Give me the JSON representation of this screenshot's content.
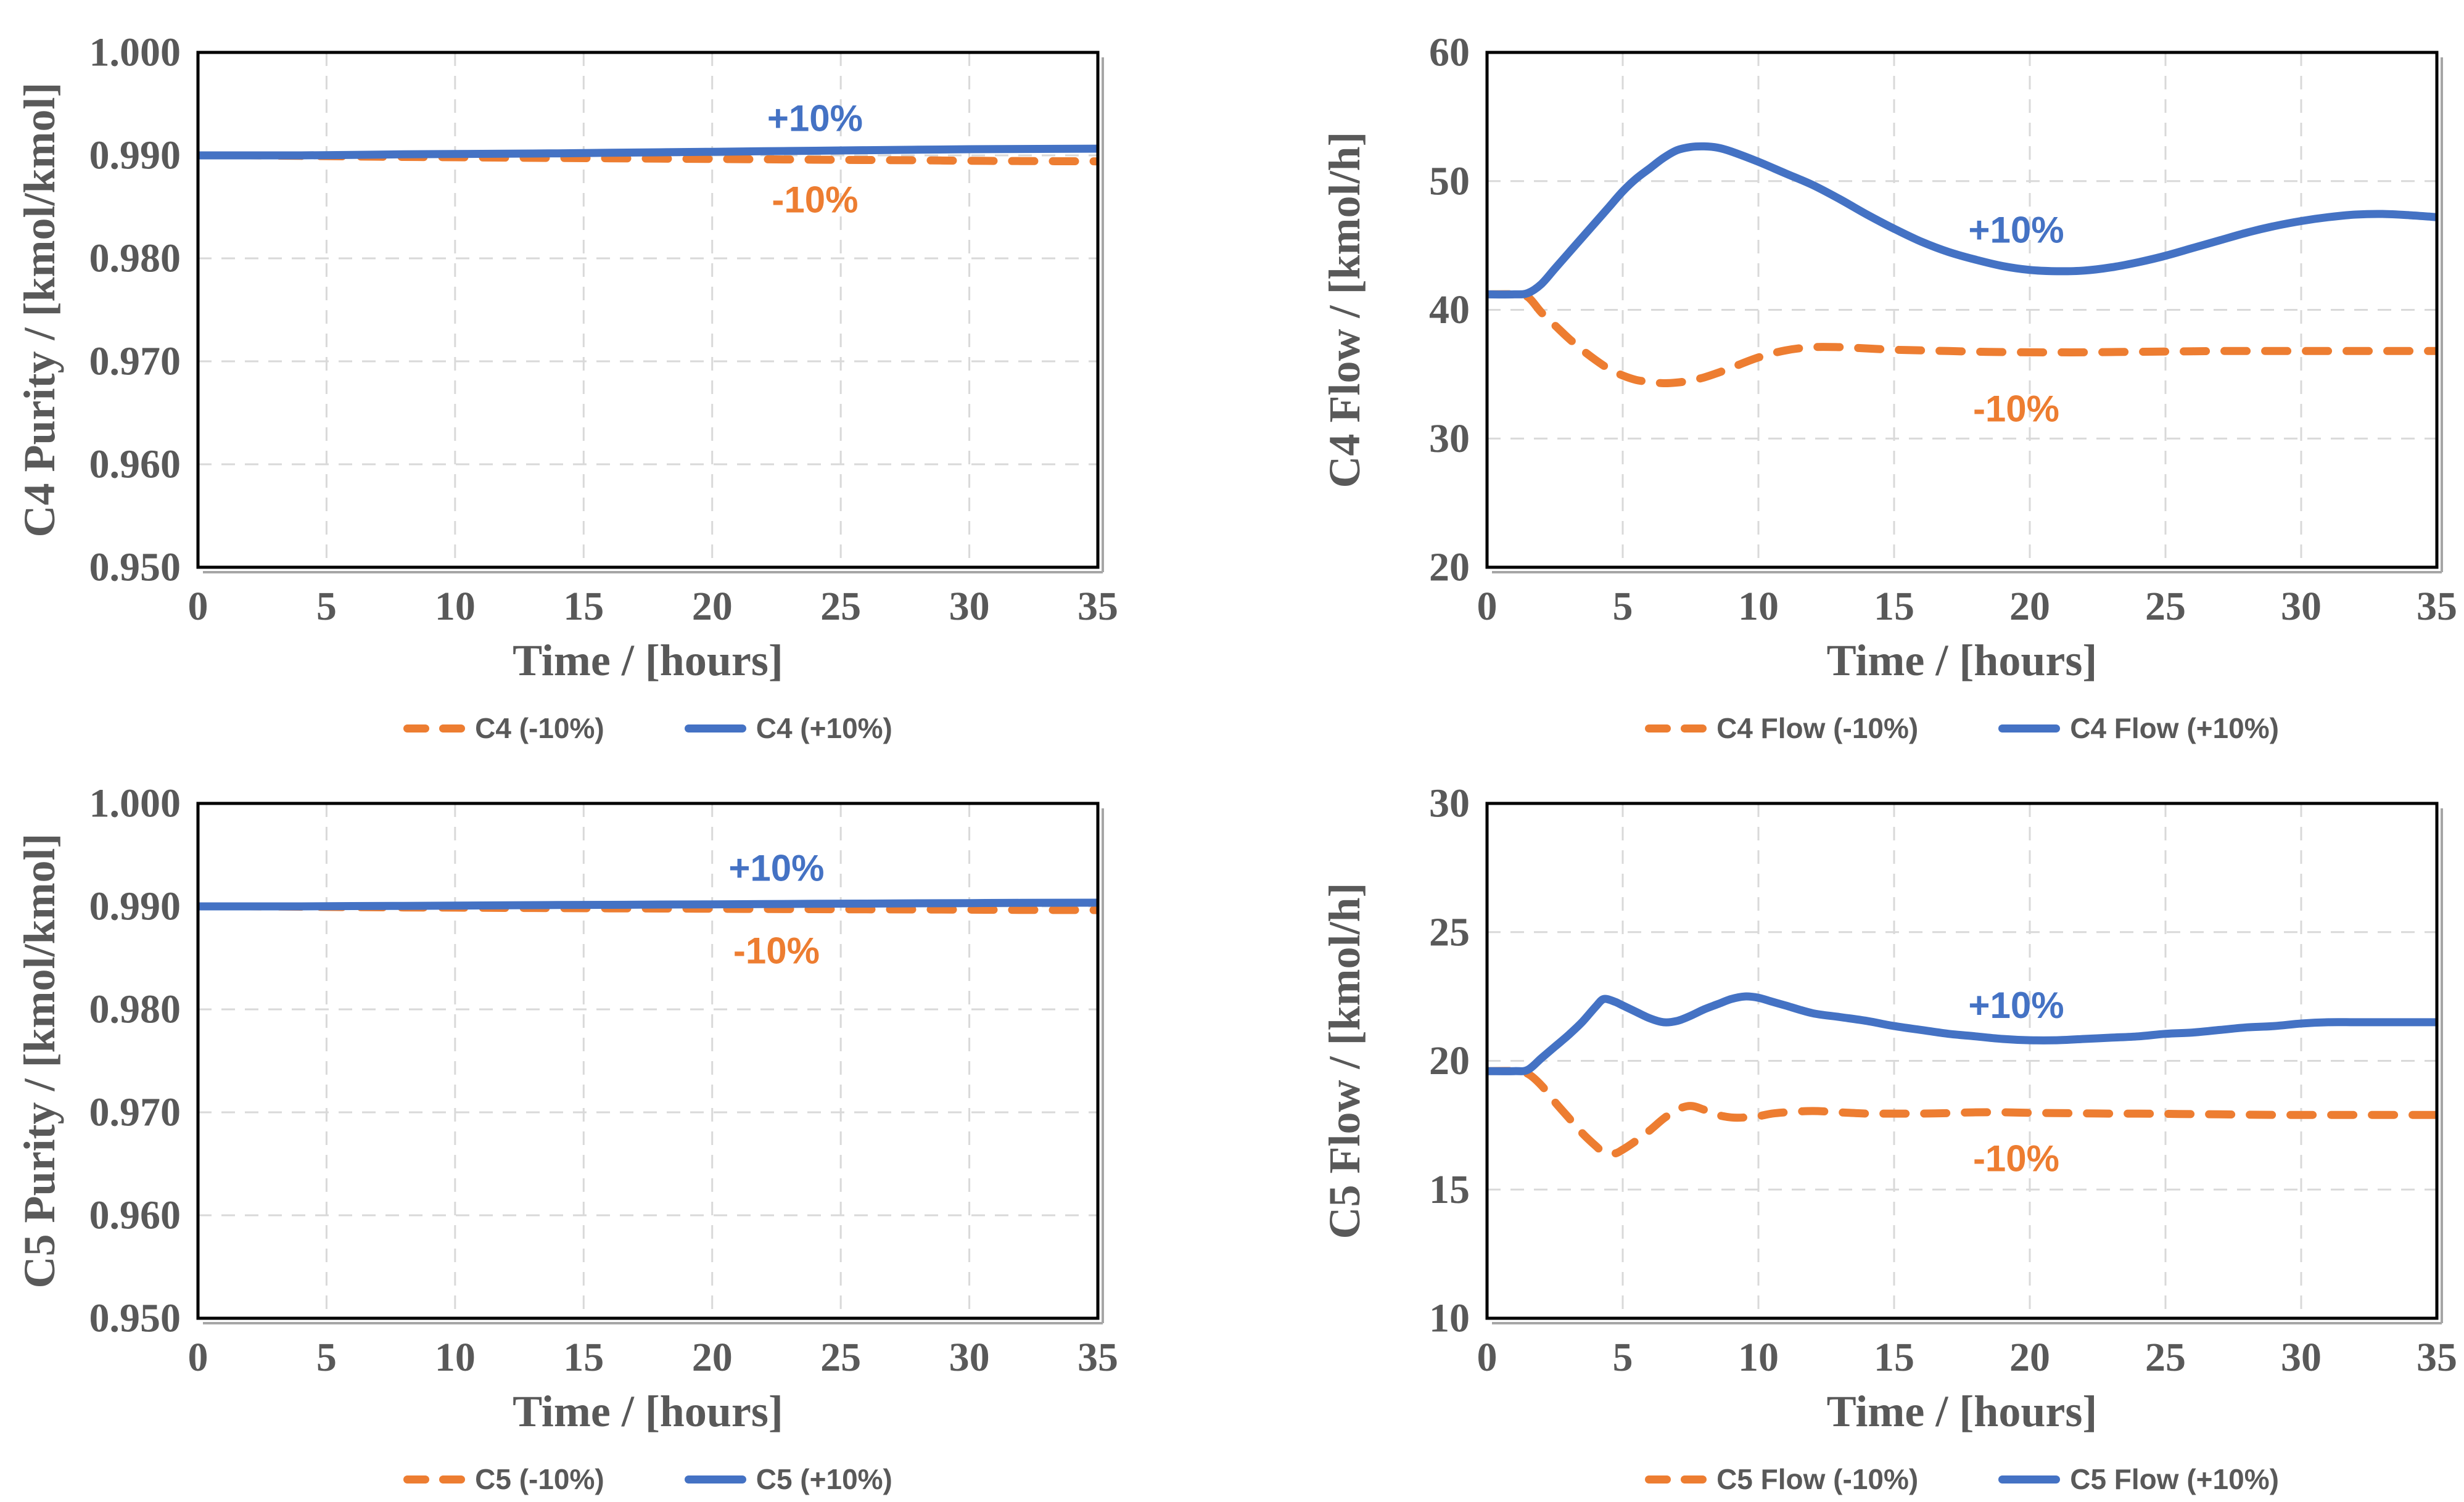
{
  "colors": {
    "plus10": "#4472C4",
    "minus10": "#ED7D31",
    "text": "#595959",
    "gridline": "#D9D9D9",
    "plot_border": "#000000",
    "shadow": "#A6A6A6",
    "background": "#FFFFFF"
  },
  "chart_data": [
    {
      "id": "c4-purity",
      "type": "line",
      "title": "",
      "xlabel": "Time / [hours]",
      "ylabel": "C4 Purity / [kmol/kmol]",
      "xlim": [
        0,
        35
      ],
      "xticks": [
        0,
        5,
        10,
        15,
        20,
        25,
        30,
        35
      ],
      "ylim": [
        0.95,
        1.0
      ],
      "yticks": [
        0.95,
        0.96,
        0.97,
        0.98,
        0.99,
        1.0
      ],
      "ytick_decimals": 3,
      "grid": true,
      "legend_position": "bottom",
      "series": [
        {
          "name": "C4 (-10%)",
          "style": "dashed",
          "color_key": "minus10",
          "x": [
            0,
            2,
            4,
            6,
            8,
            10,
            12,
            14,
            16,
            18,
            20,
            22,
            24,
            26,
            28,
            30,
            32,
            35
          ],
          "y": [
            0.99,
            0.99,
            0.98995,
            0.9899,
            0.98985,
            0.98982,
            0.98978,
            0.98975,
            0.98972,
            0.98968,
            0.98965,
            0.98962,
            0.98958,
            0.98955,
            0.98952,
            0.98948,
            0.98945,
            0.98942
          ]
        },
        {
          "name": "C4 (+10%)",
          "style": "solid",
          "color_key": "plus10",
          "x": [
            0,
            2,
            4,
            6,
            8,
            10,
            12,
            14,
            16,
            18,
            20,
            22,
            24,
            26,
            28,
            30,
            32,
            35
          ],
          "y": [
            0.99,
            0.99,
            0.99,
            0.99005,
            0.9901,
            0.99013,
            0.99017,
            0.9902,
            0.99025,
            0.9903,
            0.99035,
            0.9904,
            0.99045,
            0.9905,
            0.99055,
            0.9906,
            0.99062,
            0.99065
          ]
        }
      ],
      "annotations": [
        {
          "text": "+10%",
          "x": 24,
          "y": 0.9936,
          "color_key": "plus10"
        },
        {
          "text": "-10%",
          "x": 24,
          "y": 0.9857,
          "color_key": "minus10"
        }
      ]
    },
    {
      "id": "c4-flow",
      "type": "line",
      "title": "",
      "xlabel": "Time / [hours]",
      "ylabel": "C4 Flow / [kmol/h]",
      "xlim": [
        0,
        35
      ],
      "xticks": [
        0,
        5,
        10,
        15,
        20,
        25,
        30,
        35
      ],
      "ylim": [
        20,
        60
      ],
      "yticks": [
        20,
        30,
        40,
        50,
        60
      ],
      "ytick_decimals": 0,
      "grid": true,
      "legend_position": "bottom",
      "series": [
        {
          "name": "C4 Flow (-10%)",
          "style": "dashed",
          "color_key": "minus10",
          "x": [
            0,
            1,
            1.5,
            2,
            2.5,
            3,
            3.5,
            4,
            4.5,
            5,
            5.5,
            6,
            6.5,
            7,
            7.5,
            8,
            8.5,
            9,
            10,
            11,
            12,
            13,
            14,
            15,
            16,
            17,
            18,
            19,
            20,
            21,
            22,
            23,
            24,
            25,
            26,
            27,
            28,
            29,
            30,
            31,
            32,
            33,
            34,
            35
          ],
          "y": [
            41.2,
            41.2,
            41,
            39.8,
            38.8,
            37.8,
            36.9,
            36.1,
            35.4,
            34.9,
            34.55,
            34.4,
            34.3,
            34.35,
            34.5,
            34.75,
            35.1,
            35.5,
            36.3,
            36.85,
            37.1,
            37.1,
            37,
            36.9,
            36.85,
            36.8,
            36.75,
            36.72,
            36.7,
            36.7,
            36.7,
            36.72,
            36.74,
            36.76,
            36.78,
            36.8,
            36.8,
            36.8,
            36.8,
            36.8,
            36.8,
            36.8,
            36.8,
            36.8
          ]
        },
        {
          "name": "C4 Flow (+10%)",
          "style": "solid",
          "color_key": "plus10",
          "x": [
            0,
            1,
            1.5,
            2,
            2.5,
            3,
            3.5,
            4,
            4.5,
            5,
            5.5,
            6,
            6.5,
            7,
            7.5,
            8,
            8.5,
            9,
            10,
            11,
            12,
            13,
            14,
            15,
            16,
            17,
            18,
            19,
            20,
            21,
            22,
            23,
            24,
            25,
            26,
            27,
            28,
            29,
            30,
            31,
            32,
            33,
            34,
            35
          ],
          "y": [
            41.2,
            41.2,
            41.3,
            42,
            43.2,
            44.4,
            45.6,
            46.8,
            48,
            49.2,
            50.2,
            51,
            51.8,
            52.4,
            52.65,
            52.7,
            52.6,
            52.3,
            51.5,
            50.6,
            49.7,
            48.6,
            47.4,
            46.3,
            45.3,
            44.5,
            43.9,
            43.4,
            43.1,
            43,
            43.05,
            43.3,
            43.7,
            44.2,
            44.8,
            45.4,
            46,
            46.5,
            46.9,
            47.2,
            47.4,
            47.45,
            47.35,
            47.2
          ]
        }
      ],
      "annotations": [
        {
          "text": "+10%",
          "x": 19.5,
          "y": 46.2,
          "color_key": "plus10"
        },
        {
          "text": "-10%",
          "x": 19.5,
          "y": 32.3,
          "color_key": "minus10"
        }
      ]
    },
    {
      "id": "c5-purity",
      "type": "line",
      "title": "",
      "xlabel": "Time / [hours]",
      "ylabel": "C5 Purity / [kmol/kmol]",
      "xlim": [
        0,
        35
      ],
      "xticks": [
        0,
        5,
        10,
        15,
        20,
        25,
        30,
        35
      ],
      "ylim": [
        0.95,
        1.0
      ],
      "yticks": [
        0.95,
        0.96,
        0.97,
        0.98,
        0.99,
        1.0
      ],
      "ytick_decimals": 3,
      "grid": true,
      "legend_position": "bottom",
      "series": [
        {
          "name": "C5 (-10%)",
          "style": "dashed",
          "color_key": "minus10",
          "x": [
            0,
            2,
            4,
            6,
            8,
            10,
            12,
            14,
            16,
            18,
            20,
            22,
            24,
            26,
            28,
            30,
            32,
            35
          ],
          "y": [
            0.99,
            0.99,
            0.98997,
            0.98993,
            0.9899,
            0.98988,
            0.98985,
            0.98983,
            0.98981,
            0.98979,
            0.98977,
            0.98975,
            0.98973,
            0.98971,
            0.9897,
            0.98968,
            0.98966,
            0.98964
          ]
        },
        {
          "name": "C5 (+10%)",
          "style": "solid",
          "color_key": "plus10",
          "x": [
            0,
            2,
            4,
            6,
            8,
            10,
            12,
            14,
            16,
            18,
            20,
            22,
            24,
            26,
            28,
            30,
            32,
            35
          ],
          "y": [
            0.99,
            0.99,
            0.99,
            0.99003,
            0.99005,
            0.99008,
            0.9901,
            0.99013,
            0.99015,
            0.99018,
            0.9902,
            0.99022,
            0.99025,
            0.99027,
            0.9903,
            0.99032,
            0.99034,
            0.99036
          ]
        }
      ],
      "annotations": [
        {
          "text": "+10%",
          "x": 22.5,
          "y": 0.9937,
          "color_key": "plus10"
        },
        {
          "text": "-10%",
          "x": 22.5,
          "y": 0.9857,
          "color_key": "minus10"
        }
      ]
    },
    {
      "id": "c5-flow",
      "type": "line",
      "title": "",
      "xlabel": "Time / [hours]",
      "ylabel": "C5 Flow / [kmol/h]",
      "xlim": [
        0,
        35
      ],
      "xticks": [
        0,
        5,
        10,
        15,
        20,
        25,
        30,
        35
      ],
      "ylim": [
        10,
        30
      ],
      "yticks": [
        10,
        15,
        20,
        25,
        30
      ],
      "ytick_decimals": 0,
      "grid": true,
      "legend_position": "bottom",
      "series": [
        {
          "name": "C5 Flow (-10%)",
          "style": "dashed",
          "color_key": "minus10",
          "x": [
            0,
            1,
            1.5,
            2,
            2.5,
            3,
            3.5,
            4,
            4.3,
            4.7,
            5,
            5.5,
            6,
            6.5,
            7,
            7.5,
            8,
            8.5,
            9,
            9.5,
            10,
            10.5,
            11,
            12,
            13,
            14,
            15,
            16,
            17,
            18,
            19,
            20,
            21,
            22,
            23,
            24,
            25,
            26,
            27,
            28,
            29,
            30,
            31,
            32,
            33,
            34,
            35
          ],
          "y": [
            19.6,
            19.6,
            19.5,
            19.05,
            18.4,
            17.8,
            17.2,
            16.7,
            16.45,
            16.4,
            16.55,
            16.9,
            17.3,
            17.75,
            18.1,
            18.25,
            18.1,
            17.9,
            17.8,
            17.8,
            17.85,
            17.95,
            18,
            18.05,
            18,
            17.95,
            17.95,
            17.95,
            17.97,
            18,
            18,
            17.98,
            17.97,
            17.96,
            17.95,
            17.95,
            17.94,
            17.93,
            17.92,
            17.91,
            17.9,
            17.9,
            17.9,
            17.9,
            17.9,
            17.9,
            17.9
          ]
        },
        {
          "name": "C5 Flow (+10%)",
          "style": "solid",
          "color_key": "plus10",
          "x": [
            0,
            1,
            1.5,
            2,
            2.5,
            3,
            3.5,
            4,
            4.3,
            4.7,
            5,
            5.5,
            6,
            6.5,
            7,
            7.5,
            8,
            8.5,
            9,
            9.5,
            10,
            10.5,
            11,
            12,
            13,
            14,
            15,
            16,
            17,
            18,
            19,
            20,
            21,
            22,
            23,
            24,
            25,
            26,
            27,
            28,
            29,
            30,
            31,
            32,
            33,
            34,
            35
          ],
          "y": [
            19.6,
            19.6,
            19.65,
            20.1,
            20.55,
            21,
            21.5,
            22.1,
            22.4,
            22.3,
            22.15,
            21.9,
            21.65,
            21.5,
            21.55,
            21.75,
            22,
            22.2,
            22.4,
            22.5,
            22.45,
            22.3,
            22.15,
            21.85,
            21.7,
            21.55,
            21.35,
            21.2,
            21.05,
            20.95,
            20.85,
            20.8,
            20.8,
            20.85,
            20.9,
            20.95,
            21.05,
            21.1,
            21.2,
            21.3,
            21.35,
            21.45,
            21.5,
            21.5,
            21.5,
            21.5,
            21.5
          ]
        }
      ],
      "annotations": [
        {
          "text": "+10%",
          "x": 19.5,
          "y": 22.15,
          "color_key": "plus10"
        },
        {
          "text": "-10%",
          "x": 19.5,
          "y": 16.2,
          "color_key": "minus10"
        }
      ]
    }
  ]
}
